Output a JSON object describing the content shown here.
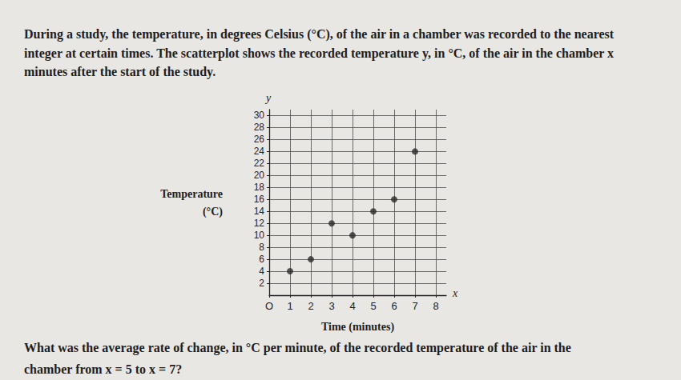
{
  "chart_data": {
    "type": "scatter",
    "title": "During a study, the temperature, in degrees Celsius (°C), of the air in a chamber was recorded to the nearest integer at certain times. The scatterplot shows the recorded temperature y, in °C, of the air in the chamber x minutes after the start of the study.",
    "x_label": "Time (minutes)",
    "y_label": "Temperature\n(°C)",
    "annotations": [
      "y",
      "x",
      "What was the average rate of change, in °C per minute, of the recorded temperature of the air in the chamber from x = 5 to x = 7?"
    ],
    "x": [
      1,
      2,
      3,
      4,
      5,
      6,
      7
    ],
    "values": [
      4,
      6,
      12,
      10,
      14,
      16,
      24
    ],
    "color": "#2b2b2b",
    "marker": "circle",
    "xlim": [
      0,
      8.5
    ],
    "xticks": [
      {
        "value": 0,
        "label": "O"
      },
      1,
      2,
      3,
      4,
      5,
      6,
      7,
      8
    ],
    "ylim": [
      0,
      31
    ],
    "yticks": [
      2,
      4,
      6,
      8,
      10,
      12,
      14,
      16,
      18,
      20,
      22,
      24,
      26,
      28,
      30
    ],
    "grid": true
  }
}
